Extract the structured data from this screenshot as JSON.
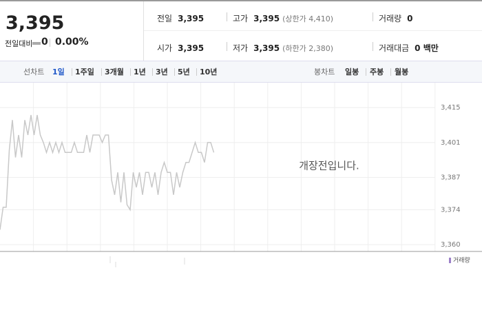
{
  "quote": {
    "price": "3,395",
    "change_label": "전일대비",
    "change": "0",
    "change_rate": "0.00%"
  },
  "stats": [
    {
      "label": "전일",
      "value": "3,395"
    },
    {
      "label": "고가",
      "value": "3,395",
      "note": "(상한가 4,410)"
    },
    {
      "label": "거래량",
      "value": "0"
    },
    {
      "label": "시가",
      "value": "3,395"
    },
    {
      "label": "저가",
      "value": "3,395",
      "note": "(하한가 2,380)"
    },
    {
      "label": "거래대금",
      "value": "0 백만"
    }
  ],
  "tabs": {
    "line_label": "선차트",
    "line_periods": [
      "1일",
      "1주일",
      "3개월",
      "1년",
      "3년",
      "5년",
      "10년"
    ],
    "candle_label": "봉차트",
    "candle_periods": [
      "일봉",
      "주봉",
      "월봉"
    ]
  },
  "chart_data": {
    "type": "line",
    "annotation": "개장전입니다.",
    "volume_label": "거래량",
    "series": [
      {
        "color": "#c8c8c8",
        "values": [
          3366,
          3375,
          3375,
          3398,
          3410,
          3395,
          3404,
          3395,
          3410,
          3404,
          3412,
          3404,
          3412,
          3404,
          3401,
          3397,
          3401,
          3397,
          3401,
          3397,
          3401,
          3397,
          3397,
          3397,
          3401,
          3397,
          3397,
          3397,
          3404,
          3397,
          3404,
          3404,
          3404,
          3401,
          3404,
          3404,
          3386,
          3380,
          3389,
          3377,
          3389,
          3376,
          3374,
          3389,
          3383,
          3389,
          3380,
          3389,
          3389,
          3383,
          3389,
          3380,
          3389,
          3393,
          3389,
          3389,
          3380,
          3389,
          3383,
          3389,
          3393,
          3393,
          3397,
          3401,
          3397,
          3397,
          3393,
          3401,
          3401,
          3397
        ]
      }
    ],
    "ylim": [
      3357,
      3425
    ],
    "yticks": [
      {
        "value": 3360,
        "label": "3,360"
      },
      {
        "value": 3374,
        "label": "3,374"
      },
      {
        "value": 3387,
        "label": "3,387"
      },
      {
        "value": 3401,
        "label": "3,401"
      },
      {
        "value": 3415,
        "label": "3,415"
      }
    ],
    "grid": true
  }
}
